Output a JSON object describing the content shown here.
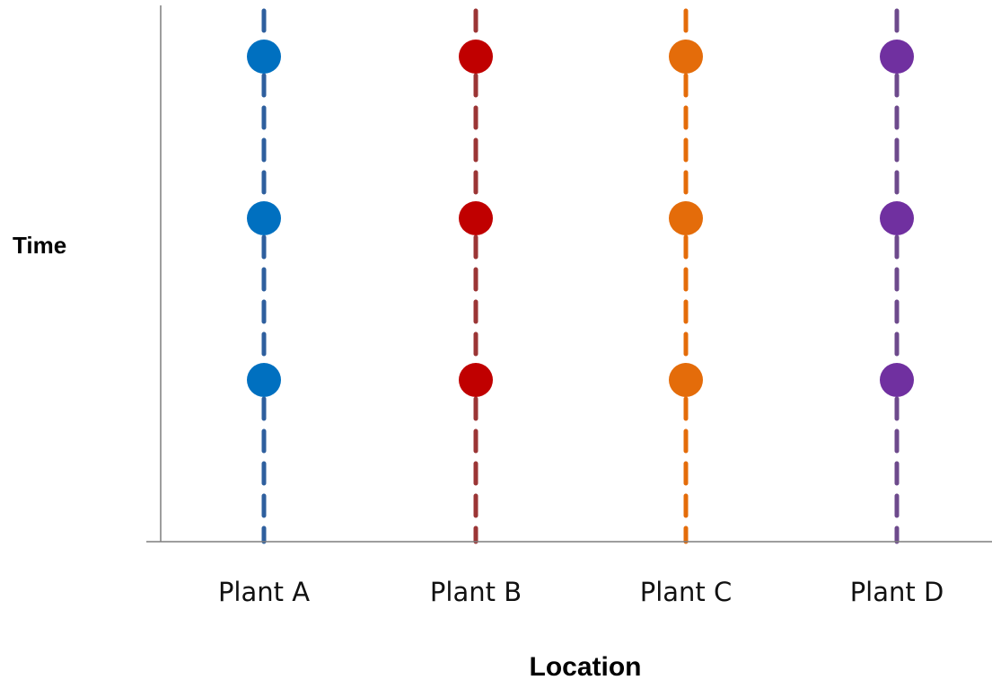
{
  "axes": {
    "y_label": "Time",
    "x_label": "Location"
  },
  "chart_data": {
    "type": "scatter",
    "categories": [
      "Plant A",
      "Plant B",
      "Plant C",
      "Plant D"
    ],
    "xlabel": "Location",
    "ylabel": "Time",
    "series": [
      {
        "category": "Plant A",
        "points": [
          1,
          2,
          3
        ],
        "color": "#0070c0",
        "line_color": "#2e5f9e"
      },
      {
        "category": "Plant B",
        "points": [
          1,
          2,
          3
        ],
        "color": "#c00000",
        "line_color": "#9b3535"
      },
      {
        "category": "Plant C",
        "points": [
          1,
          2,
          3
        ],
        "color": "#e46c0a",
        "line_color": "#e46c0a"
      },
      {
        "category": "Plant D",
        "points": [
          1,
          2,
          3
        ],
        "color": "#7030a0",
        "line_color": "#6d4a8c"
      }
    ],
    "ylim": [
      0,
      3.35
    ],
    "grid": false,
    "line_style": "dashed"
  },
  "colors": {
    "axis": "#7f7f7f"
  }
}
